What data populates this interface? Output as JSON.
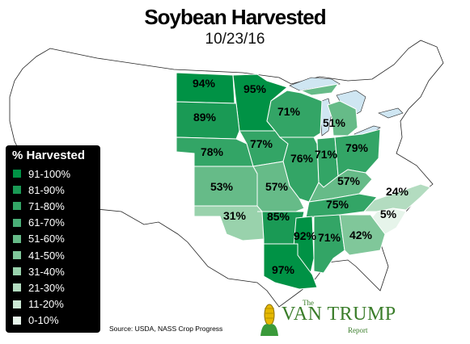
{
  "title": "Soybean Harvested",
  "subtitle": "10/23/16",
  "legend": {
    "title": "% Harvested",
    "items": [
      {
        "label": "91-100%",
        "color": "#009245"
      },
      {
        "label": "81-90%",
        "color": "#1a9a55"
      },
      {
        "label": "71-80%",
        "color": "#33a566"
      },
      {
        "label": "61-70%",
        "color": "#4aae77"
      },
      {
        "label": "51-60%",
        "color": "#66bb88"
      },
      {
        "label": "41-50%",
        "color": "#80c79a"
      },
      {
        "label": "31-40%",
        "color": "#99d2ac"
      },
      {
        "label": "21-30%",
        "color": "#b3dcc0"
      },
      {
        "label": "11-20%",
        "color": "#cce8d4"
      },
      {
        "label": "0-10%",
        "color": "#e6f4ea"
      }
    ]
  },
  "states": [
    {
      "state": "North Dakota",
      "value": "94%"
    },
    {
      "state": "Minnesota",
      "value": "95%"
    },
    {
      "state": "South Dakota",
      "value": "89%"
    },
    {
      "state": "Wisconsin",
      "value": "71%"
    },
    {
      "state": "Michigan",
      "value": "51%"
    },
    {
      "state": "Nebraska",
      "value": "78%"
    },
    {
      "state": "Iowa",
      "value": "77%"
    },
    {
      "state": "Illinois",
      "value": "76%"
    },
    {
      "state": "Indiana",
      "value": "71%"
    },
    {
      "state": "Ohio",
      "value": "79%"
    },
    {
      "state": "Kansas",
      "value": "53%"
    },
    {
      "state": "Missouri",
      "value": "57%"
    },
    {
      "state": "Kentucky",
      "value": "57%"
    },
    {
      "state": "North Carolina",
      "value": "24%"
    },
    {
      "state": "Tennessee",
      "value": "75%"
    },
    {
      "state": "Oklahoma",
      "value": "31%"
    },
    {
      "state": "Arkansas",
      "value": "85%"
    },
    {
      "state": "South Carolina",
      "value": "5%"
    },
    {
      "state": "Mississippi",
      "value": "92%"
    },
    {
      "state": "Alabama",
      "value": "71%"
    },
    {
      "state": "Georgia",
      "value": "42%"
    },
    {
      "state": "Louisiana",
      "value": "97%"
    }
  ],
  "source": "Source: USDA, NASS Crop Progress",
  "logo": {
    "the": "The",
    "main": "VAN TRUMP",
    "report": "Report"
  }
}
